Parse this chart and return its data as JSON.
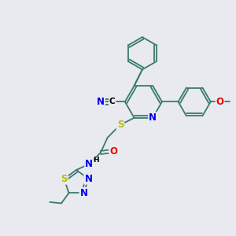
{
  "bg_color": "#e8eaf0",
  "bond_color": "#3a7a6e",
  "bond_width": 1.3,
  "atom_colors": {
    "N": "#0000ee",
    "S": "#bbbb00",
    "O": "#ee0000",
    "C": "#000000",
    "H": "#000000"
  },
  "font_size": 7.5
}
